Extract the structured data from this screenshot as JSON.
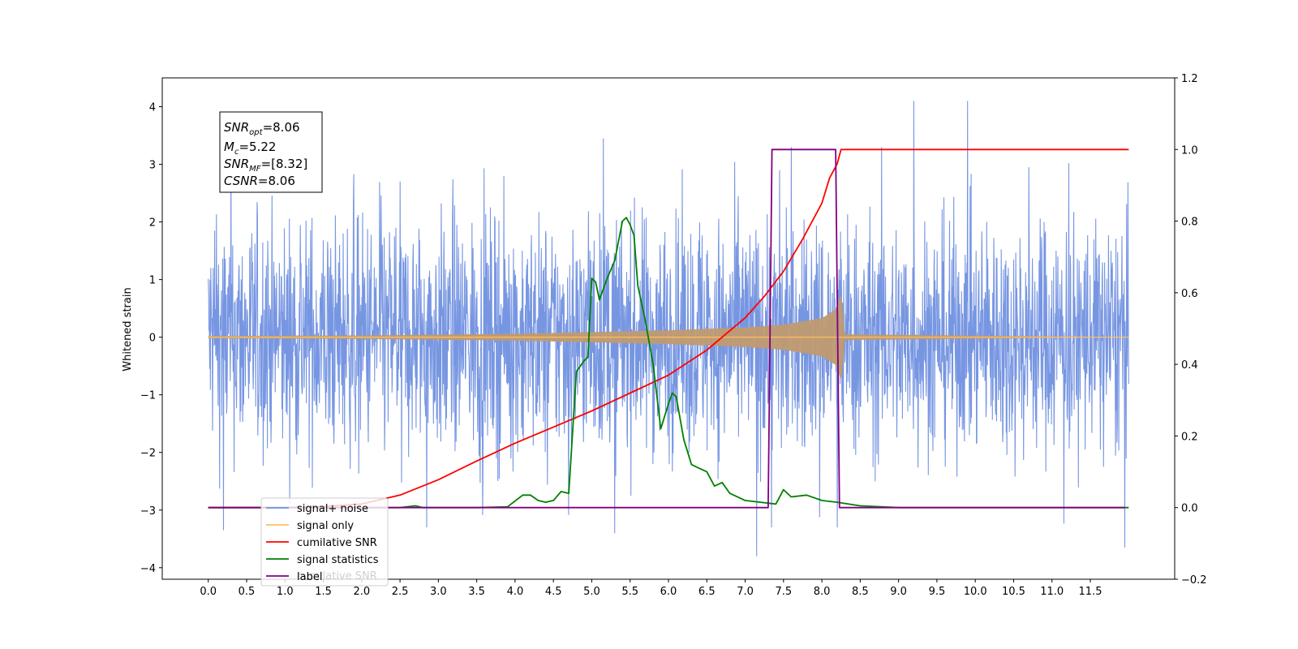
{
  "chart_data": {
    "type": "line",
    "title": "",
    "xlabel": "",
    "ylabel": "Whitened strain",
    "xlim": [
      -0.6,
      12.6
    ],
    "ylim": [
      -4.2,
      4.5
    ],
    "y2lim": [
      -0.2,
      1.2
    ],
    "x_ticks": [
      "0.0",
      "0.5",
      "1.0",
      "1.5",
      "2.0",
      "2.5",
      "3.0",
      "3.5",
      "4.0",
      "4.5",
      "5.0",
      "5.5",
      "6.0",
      "6.5",
      "7.0",
      "7.5",
      "8.0",
      "8.5",
      "9.0",
      "9.5",
      "10.0",
      "10.5",
      "11.0",
      "11.5"
    ],
    "y_ticks": [
      4,
      3,
      2,
      1,
      0,
      -1,
      -2,
      -3,
      -4
    ],
    "y_tick_labels": [
      "4",
      "3",
      "2",
      "1",
      "0",
      "−1",
      "−2",
      "−3",
      "−4"
    ],
    "y2_ticks": [
      "1.2",
      "1.0",
      "0.8",
      "0.6",
      "0.4",
      "0.2",
      "0.0",
      "−0.2"
    ],
    "annotation": {
      "snr_opt": {
        "base": "SNR",
        "sub": "opt",
        "value": "=8.06"
      },
      "mc": {
        "base": "M",
        "sub": "c",
        "value": "=5.22"
      },
      "snr_mf": {
        "base": "SNR",
        "sub": "MF",
        "value": "=[8.32]"
      },
      "csnr": {
        "base": "CSNR",
        "value": "=8.06"
      }
    },
    "legend": {
      "placement": "lower-left",
      "entries": [
        {
          "label": "signal+ noise",
          "color": "#7090e0"
        },
        {
          "label": "signal only",
          "color": "#ffbf60"
        },
        {
          "label": "cumilative SNR",
          "color": "#ff0000"
        },
        {
          "label": "signal statistics",
          "color": "#008000"
        },
        {
          "label": "label",
          "color": "#800080"
        }
      ],
      "ghost_text": "cumilative SNR"
    },
    "series": [
      {
        "name": "signal+ noise",
        "axis": "left",
        "color": "#7090e0",
        "description": "whitened noise spanning x 0.0 to 12.0, typical amplitude about ±1.5, peaks near 3.4 at x≈5.15, 4.1 at x≈9.2 and 10.0, minima near −3.8 at x≈7.15 and −3.65 at x≈11.95",
        "x_range": [
          0.0,
          12.0
        ],
        "typical_amplitude": 1.5,
        "peaks": [
          [
            0.2,
            -3.35
          ],
          [
            5.15,
            3.45
          ],
          [
            5.3,
            -3.4
          ],
          [
            7.15,
            -3.8
          ],
          [
            7.45,
            2.9
          ],
          [
            8.2,
            -3.3
          ],
          [
            9.2,
            4.1
          ],
          [
            9.9,
            4.1
          ],
          [
            11.95,
            -3.65
          ]
        ]
      },
      {
        "name": "signal only",
        "axis": "left",
        "color": "#ffbf60",
        "description": "chirp envelope growing with time",
        "envelope": {
          "x": [
            0.0,
            2.0,
            4.0,
            6.0,
            7.0,
            7.5,
            8.0,
            8.2,
            8.25,
            8.3,
            12.0
          ],
          "amp": [
            0.02,
            0.03,
            0.06,
            0.12,
            0.17,
            0.22,
            0.33,
            0.5,
            0.8,
            0.05,
            0.0
          ]
        }
      },
      {
        "name": "cumilative SNR",
        "axis": "right",
        "color": "#ff0000",
        "x": [
          0.0,
          0.5,
          1.0,
          1.5,
          2.0,
          2.5,
          3.0,
          3.5,
          4.0,
          4.5,
          5.0,
          5.5,
          6.0,
          6.5,
          7.0,
          7.25,
          7.5,
          7.75,
          8.0,
          8.1,
          8.2,
          8.25,
          12.0
        ],
        "values": [
          0.0,
          0.0,
          0.0,
          0.003,
          0.01,
          0.035,
          0.078,
          0.13,
          0.18,
          0.225,
          0.27,
          0.32,
          0.37,
          0.44,
          0.53,
          0.59,
          0.66,
          0.75,
          0.85,
          0.92,
          0.96,
          1.0,
          1.0
        ]
      },
      {
        "name": "signal statistics",
        "axis": "right",
        "color": "#008000",
        "x": [
          0.0,
          2.5,
          2.7,
          2.8,
          3.5,
          3.9,
          4.1,
          4.2,
          4.3,
          4.4,
          4.5,
          4.6,
          4.7,
          4.8,
          4.9,
          4.95,
          5.0,
          5.05,
          5.1,
          5.15,
          5.2,
          5.3,
          5.4,
          5.45,
          5.5,
          5.55,
          5.6,
          5.7,
          5.8,
          5.9,
          6.0,
          6.05,
          6.1,
          6.2,
          6.3,
          6.4,
          6.5,
          6.6,
          6.7,
          6.8,
          7.0,
          7.2,
          7.4,
          7.5,
          7.6,
          7.8,
          8.0,
          8.2,
          8.5,
          9.0,
          10.5,
          11.5,
          12.0
        ],
        "values": [
          0.0,
          0.0,
          0.005,
          0.0,
          0.0,
          0.002,
          0.035,
          0.035,
          0.02,
          0.015,
          0.02,
          0.045,
          0.04,
          0.38,
          0.41,
          0.42,
          0.64,
          0.63,
          0.58,
          0.61,
          0.64,
          0.69,
          0.8,
          0.81,
          0.79,
          0.76,
          0.62,
          0.52,
          0.4,
          0.22,
          0.29,
          0.32,
          0.31,
          0.19,
          0.12,
          0.11,
          0.1,
          0.06,
          0.07,
          0.04,
          0.02,
          0.015,
          0.01,
          0.05,
          0.03,
          0.035,
          0.02,
          0.015,
          0.005,
          0.0,
          0.0,
          0.0,
          0.0
        ]
      },
      {
        "name": "label",
        "axis": "right",
        "color": "#800080",
        "x": [
          0.0,
          7.3,
          7.35,
          8.18,
          8.23,
          11.95
        ],
        "values": [
          0.0,
          0.0,
          1.0,
          1.0,
          0.0,
          0.0
        ]
      }
    ]
  }
}
